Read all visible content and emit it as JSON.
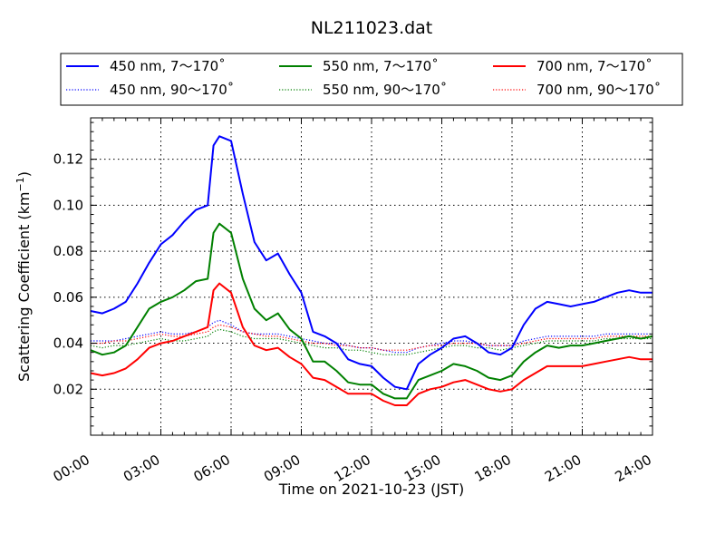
{
  "chart_data": {
    "type": "line",
    "title": "NL211023.dat",
    "xlabel": "Time on 2021-10-23 (JST)",
    "ylabel": "Scattering Coefficient (km",
    "ylabel_sup": "−1",
    "ylabel_close": ")",
    "xlim": [
      "00:00",
      "24:00"
    ],
    "ylim": [
      0.0,
      0.138
    ],
    "grid": true,
    "legend_position": "top (above plot)",
    "x_tick_labels": [
      "00:00",
      "03:00",
      "06:00",
      "09:00",
      "12:00",
      "15:00",
      "18:00",
      "21:00",
      "24:00"
    ],
    "y_tick_labels": [
      "0.02",
      "0.04",
      "0.06",
      "0.08",
      "0.10",
      "0.12"
    ],
    "y_tick_values": [
      0.02,
      0.04,
      0.06,
      0.08,
      0.1,
      0.12
    ],
    "x_hours": [
      0,
      0.5,
      1,
      1.5,
      2,
      2.5,
      3,
      3.5,
      4,
      4.5,
      5,
      5.25,
      5.5,
      6,
      6.5,
      7,
      7.5,
      8,
      8.5,
      9,
      9.5,
      10,
      10.5,
      11,
      11.5,
      12,
      12.5,
      13,
      13.5,
      14,
      14.5,
      15,
      15.5,
      16,
      16.5,
      17,
      17.5,
      18,
      18.5,
      19,
      19.5,
      20,
      20.5,
      21,
      21.5,
      22,
      22.5,
      23,
      23.5,
      24
    ],
    "series": [
      {
        "name": "450 nm, 7～170˚",
        "color": "#0000ff",
        "style": "solid",
        "values": [
          0.054,
          0.053,
          0.055,
          0.058,
          0.066,
          0.075,
          0.083,
          0.087,
          0.093,
          0.098,
          0.1,
          0.126,
          0.13,
          0.128,
          0.105,
          0.084,
          0.076,
          0.079,
          0.07,
          0.062,
          0.045,
          0.043,
          0.04,
          0.033,
          0.031,
          0.03,
          0.025,
          0.021,
          0.02,
          0.031,
          0.035,
          0.038,
          0.042,
          0.043,
          0.04,
          0.036,
          0.035,
          0.038,
          0.048,
          0.055,
          0.058,
          0.057,
          0.056,
          0.057,
          0.058,
          0.06,
          0.062,
          0.063,
          0.062,
          0.062
        ]
      },
      {
        "name": "450 nm, 90～170˚",
        "color": "#0000ff",
        "style": "dotted",
        "values": [
          0.041,
          0.041,
          0.041,
          0.042,
          0.043,
          0.044,
          0.045,
          0.044,
          0.044,
          0.045,
          0.047,
          0.049,
          0.05,
          0.048,
          0.045,
          0.044,
          0.044,
          0.044,
          0.043,
          0.042,
          0.041,
          0.04,
          0.04,
          0.039,
          0.038,
          0.038,
          0.037,
          0.036,
          0.036,
          0.038,
          0.039,
          0.04,
          0.041,
          0.041,
          0.04,
          0.039,
          0.039,
          0.039,
          0.041,
          0.042,
          0.043,
          0.043,
          0.043,
          0.043,
          0.043,
          0.044,
          0.044,
          0.044,
          0.044,
          0.044
        ]
      },
      {
        "name": "550 nm, 7～170˚",
        "color": "#008000",
        "style": "solid",
        "values": [
          0.037,
          0.035,
          0.036,
          0.039,
          0.047,
          0.055,
          0.058,
          0.06,
          0.063,
          0.067,
          0.068,
          0.088,
          0.092,
          0.088,
          0.068,
          0.055,
          0.05,
          0.053,
          0.046,
          0.042,
          0.032,
          0.032,
          0.028,
          0.023,
          0.022,
          0.022,
          0.018,
          0.016,
          0.016,
          0.024,
          0.026,
          0.028,
          0.031,
          0.03,
          0.028,
          0.025,
          0.024,
          0.026,
          0.032,
          0.036,
          0.039,
          0.038,
          0.039,
          0.039,
          0.04,
          0.041,
          0.042,
          0.043,
          0.042,
          0.043
        ]
      },
      {
        "name": "550 nm, 90～170˚",
        "color": "#008000",
        "style": "dotted",
        "values": [
          0.039,
          0.038,
          0.039,
          0.039,
          0.04,
          0.041,
          0.042,
          0.041,
          0.041,
          0.042,
          0.043,
          0.045,
          0.046,
          0.045,
          0.043,
          0.042,
          0.042,
          0.042,
          0.041,
          0.04,
          0.039,
          0.038,
          0.038,
          0.037,
          0.037,
          0.036,
          0.035,
          0.035,
          0.035,
          0.036,
          0.037,
          0.038,
          0.039,
          0.039,
          0.038,
          0.038,
          0.037,
          0.038,
          0.039,
          0.04,
          0.041,
          0.041,
          0.041,
          0.041,
          0.041,
          0.042,
          0.042,
          0.042,
          0.042,
          0.042
        ]
      },
      {
        "name": "700 nm, 7～170˚",
        "color": "#ff0000",
        "style": "solid",
        "values": [
          0.027,
          0.026,
          0.027,
          0.029,
          0.033,
          0.038,
          0.04,
          0.041,
          0.043,
          0.045,
          0.047,
          0.063,
          0.066,
          0.062,
          0.047,
          0.039,
          0.037,
          0.038,
          0.034,
          0.031,
          0.025,
          0.024,
          0.021,
          0.018,
          0.018,
          0.018,
          0.015,
          0.013,
          0.013,
          0.018,
          0.02,
          0.021,
          0.023,
          0.024,
          0.022,
          0.02,
          0.019,
          0.02,
          0.024,
          0.027,
          0.03,
          0.03,
          0.03,
          0.03,
          0.031,
          0.032,
          0.033,
          0.034,
          0.033,
          0.033
        ]
      },
      {
        "name": "700 nm, 90～170˚",
        "color": "#ff0000",
        "style": "dotted",
        "values": [
          0.04,
          0.04,
          0.041,
          0.041,
          0.042,
          0.043,
          0.044,
          0.043,
          0.043,
          0.044,
          0.045,
          0.047,
          0.048,
          0.047,
          0.045,
          0.044,
          0.043,
          0.043,
          0.042,
          0.041,
          0.04,
          0.04,
          0.039,
          0.039,
          0.038,
          0.038,
          0.037,
          0.037,
          0.037,
          0.038,
          0.039,
          0.039,
          0.04,
          0.04,
          0.04,
          0.039,
          0.039,
          0.039,
          0.04,
          0.041,
          0.042,
          0.042,
          0.042,
          0.042,
          0.042,
          0.043,
          0.043,
          0.043,
          0.043,
          0.043
        ]
      }
    ]
  }
}
